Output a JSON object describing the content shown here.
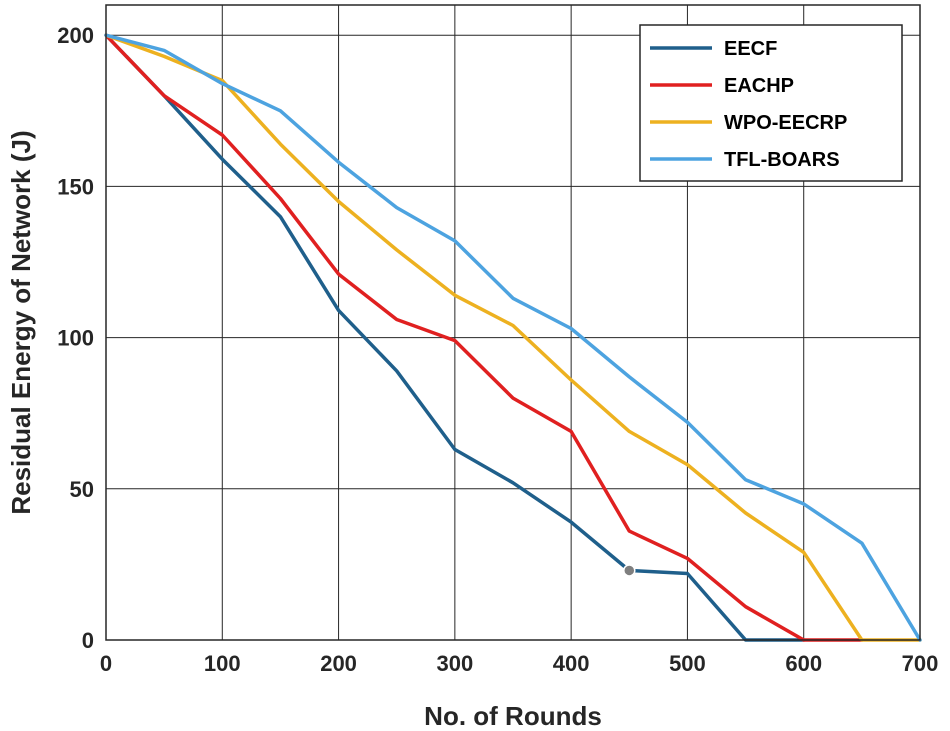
{
  "chart_data": {
    "type": "line",
    "title": "",
    "xlabel": "No. of Rounds",
    "ylabel": "Residual Energy of Network (J)",
    "xlim": [
      0,
      700
    ],
    "ylim": [
      0,
      210
    ],
    "xticks": [
      0,
      100,
      200,
      300,
      400,
      500,
      600,
      700
    ],
    "yticks": [
      0,
      50,
      100,
      150,
      200
    ],
    "grid": true,
    "legend_position": "top-right",
    "x": [
      0,
      50,
      100,
      150,
      200,
      250,
      300,
      350,
      400,
      450,
      500,
      550,
      600,
      650,
      700
    ],
    "series": [
      {
        "name": "EECF",
        "color": "#1f5f8b",
        "values": [
          200,
          180,
          159,
          140,
          109,
          89,
          63,
          52,
          39,
          23,
          22,
          0,
          0,
          null,
          null
        ]
      },
      {
        "name": "EACHP",
        "color": "#e02020",
        "values": [
          200,
          180,
          167,
          146,
          121,
          106,
          99,
          80,
          69,
          36,
          27,
          11,
          0,
          0,
          null
        ]
      },
      {
        "name": "WPO-EECRP",
        "color": "#edb120",
        "values": [
          200,
          193,
          185,
          164,
          145,
          129,
          114,
          104,
          86,
          69,
          58,
          42,
          29,
          0,
          0
        ]
      },
      {
        "name": "TFL-BOARS",
        "color": "#4da3e0",
        "values": [
          200,
          195,
          184,
          175,
          158,
          143,
          132,
          113,
          103,
          87,
          72,
          53,
          45,
          32,
          0
        ]
      }
    ],
    "annotation_marker": {
      "series": "EECF",
      "x": 450,
      "y": 23,
      "color": "#7f7f7f"
    }
  }
}
